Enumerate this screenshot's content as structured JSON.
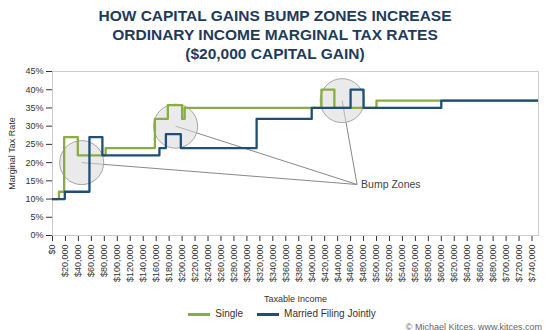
{
  "chart_data": {
    "type": "line",
    "title": "HOW CAPITAL GAINS BUMP ZONES INCREASE ORDINARY INCOME MARGINAL TAX RATES",
    "subtitle": "($20,000 CAPITAL GAIN)",
    "x_label": "Taxable Income",
    "y_label": "Marginal Tax Rate",
    "credit": "© Michael Kitces, www.kitces.com",
    "x": [
      0,
      10000,
      18000,
      19000,
      39000,
      57000,
      77000,
      82000,
      158000,
      165000,
      175000,
      178000,
      198000,
      200000,
      204000,
      315000,
      400000,
      415000,
      435000,
      460000,
      480000,
      500000,
      600000,
      750000
    ],
    "series": [
      {
        "name": "Single",
        "color": "#8aac45",
        "line_style": "step",
        "values": [
          10,
          12,
          27,
          27,
          22,
          22,
          22,
          24,
          32,
          32,
          32,
          35.8,
          35.8,
          32,
          35,
          35,
          35,
          40,
          35,
          35,
          35,
          37,
          37,
          37
        ]
      },
      {
        "name": "Married Filing Jointly",
        "color": "#1f4e79",
        "line_style": "step",
        "values": [
          10,
          10,
          10,
          12,
          12,
          27,
          22,
          22,
          22,
          24,
          27.8,
          27.8,
          24,
          24,
          24,
          32,
          35,
          35,
          35,
          40,
          35,
          35,
          37,
          37
        ]
      }
    ],
    "annotations": [
      {
        "text": "Bump Zones",
        "x": 470000,
        "y": 14,
        "zones": [
          {
            "x": 45000,
            "y": 20
          },
          {
            "x": 190000,
            "y": 30
          },
          {
            "x": 447000,
            "y": 37
          }
        ]
      }
    ],
    "xlim": [
      0,
      750000
    ],
    "xticks": [
      {
        "value": 0,
        "label": "$0"
      },
      {
        "value": 20000,
        "label": "$20,000"
      },
      {
        "value": 40000,
        "label": "$40,000"
      },
      {
        "value": 60000,
        "label": "$60,000"
      },
      {
        "value": 80000,
        "label": "$80,000"
      },
      {
        "value": 100000,
        "label": "$100,000"
      },
      {
        "value": 120000,
        "label": "$120,000"
      },
      {
        "value": 140000,
        "label": "$140,000"
      },
      {
        "value": 160000,
        "label": "$160,000"
      },
      {
        "value": 180000,
        "label": "$180,000"
      },
      {
        "value": 200000,
        "label": "$200,000"
      },
      {
        "value": 220000,
        "label": "$220,000"
      },
      {
        "value": 240000,
        "label": "$240,000"
      },
      {
        "value": 260000,
        "label": "$260,000"
      },
      {
        "value": 280000,
        "label": "$280,000"
      },
      {
        "value": 300000,
        "label": "$300,000"
      },
      {
        "value": 320000,
        "label": "$320,000"
      },
      {
        "value": 340000,
        "label": "$340,000"
      },
      {
        "value": 360000,
        "label": "$360,000"
      },
      {
        "value": 380000,
        "label": "$380,000"
      },
      {
        "value": 400000,
        "label": "$400,000"
      },
      {
        "value": 420000,
        "label": "$420,000"
      },
      {
        "value": 440000,
        "label": "$440,000"
      },
      {
        "value": 460000,
        "label": "$460,000"
      },
      {
        "value": 480000,
        "label": "$480,000"
      },
      {
        "value": 500000,
        "label": "$500,000"
      },
      {
        "value": 520000,
        "label": "$520,000"
      },
      {
        "value": 540000,
        "label": "$540,000"
      },
      {
        "value": 560000,
        "label": "$560,000"
      },
      {
        "value": 580000,
        "label": "$580,000"
      },
      {
        "value": 600000,
        "label": "$600,000"
      },
      {
        "value": 620000,
        "label": "$620,000"
      },
      {
        "value": 640000,
        "label": "$640,000"
      },
      {
        "value": 660000,
        "label": "$660,000"
      },
      {
        "value": 680000,
        "label": "$680,000"
      },
      {
        "value": 700000,
        "label": "$700,000"
      },
      {
        "value": 720000,
        "label": "$720,000"
      },
      {
        "value": 740000,
        "label": "$740,000"
      }
    ],
    "ylim": [
      0,
      45
    ],
    "yticks": [
      {
        "value": 0,
        "label": "0%"
      },
      {
        "value": 5,
        "label": "5%"
      },
      {
        "value": 10,
        "label": "10%"
      },
      {
        "value": 15,
        "label": "15%"
      },
      {
        "value": 20,
        "label": "20%"
      },
      {
        "value": 25,
        "label": "25%"
      },
      {
        "value": 30,
        "label": "30%"
      },
      {
        "value": 35,
        "label": "35%"
      },
      {
        "value": 40,
        "label": "40%"
      },
      {
        "value": 45,
        "label": "45%"
      }
    ],
    "grid": false,
    "legend": "bottom"
  }
}
